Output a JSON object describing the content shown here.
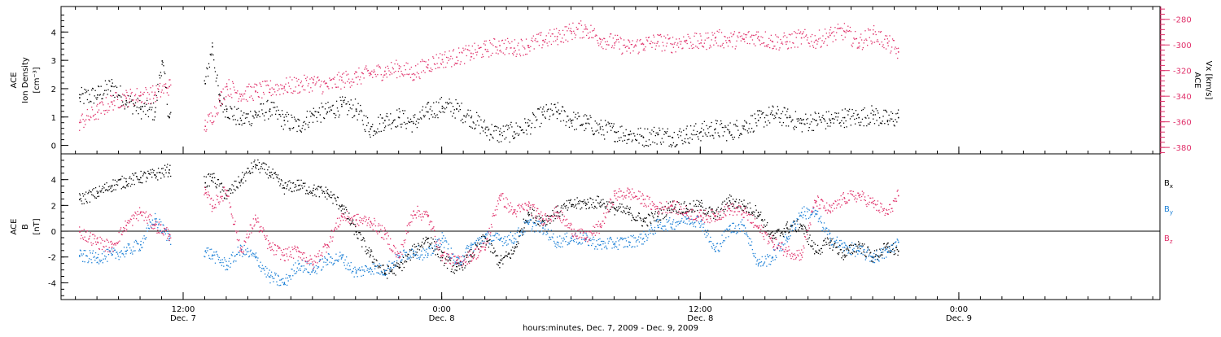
{
  "chart_data": [
    {
      "type": "scatter",
      "panel": "top",
      "ylabel_left": [
        "ACE",
        "Ion Density",
        "[cm⁻³]"
      ],
      "ylabel_right": [
        "ACE",
        "Vx [km/s]"
      ],
      "ylim_left": [
        -0.3,
        4.9
      ],
      "ylim_right": [
        -385,
        -270
      ],
      "yticks_left": [
        "0",
        "1",
        "2",
        "3",
        "4"
      ],
      "yticks_right": [
        "-380",
        "-360",
        "-340",
        "-320",
        "-300",
        "-280"
      ],
      "right_axis_color": "#e0306a",
      "series": [
        {
          "name": "Ion Density",
          "color": "#000000",
          "axis": "left",
          "x": [
            -14.5,
            -12,
            -10,
            -8,
            -6,
            -4,
            -3,
            -2,
            3,
            4,
            5,
            6,
            8,
            10,
            12,
            14,
            16,
            18,
            20,
            22,
            24,
            26,
            28,
            30,
            32,
            34,
            36,
            38,
            40,
            42,
            44,
            46,
            48,
            50,
            52,
            54,
            56,
            58,
            60,
            62,
            64,
            66,
            68,
            70,
            72,
            74,
            76,
            78,
            80,
            82,
            84,
            86,
            88,
            90,
            92,
            94,
            96,
            98,
            99.5
          ],
          "y": [
            1.7,
            1.8,
            2.1,
            1.6,
            1.3,
            1.2,
            3.0,
            1.0,
            2.2,
            3.5,
            1.6,
            1.3,
            0.9,
            1.1,
            1.3,
            0.9,
            0.7,
            1.1,
            1.2,
            1.4,
            1.3,
            0.6,
            0.9,
            1.0,
            0.8,
            1.2,
            1.4,
            1.3,
            1.0,
            0.6,
            0.4,
            0.5,
            0.7,
            1.1,
            1.2,
            0.9,
            0.8,
            0.6,
            0.5,
            0.4,
            0.3,
            0.4,
            0.3,
            0.4,
            0.5,
            0.6,
            0.5,
            0.7,
            0.9,
            1.1,
            1.0,
            0.8,
            0.9,
            0.9,
            1.0,
            1.0,
            1.1,
            0.9,
            1.0
          ]
        },
        {
          "name": "Vx",
          "color": "#e0306a",
          "axis": "right",
          "x": [
            -14.5,
            -12,
            -10,
            -8,
            -6,
            -4,
            -2,
            3,
            4,
            5,
            6,
            8,
            10,
            12,
            14,
            16,
            18,
            20,
            22,
            24,
            26,
            28,
            30,
            32,
            34,
            36,
            38,
            40,
            42,
            44,
            46,
            48,
            50,
            52,
            54,
            56,
            58,
            60,
            62,
            64,
            66,
            68,
            70,
            72,
            74,
            76,
            78,
            80,
            82,
            84,
            86,
            88,
            90,
            92,
            94,
            96,
            98,
            99.5
          ],
          "y": [
            -360,
            -352,
            -344,
            -341,
            -339,
            -338,
            -332,
            -363,
            -355,
            -344,
            -332,
            -338,
            -336,
            -334,
            -332,
            -331,
            -329,
            -332,
            -327,
            -325,
            -322,
            -320,
            -318,
            -322,
            -315,
            -311,
            -309,
            -306,
            -303,
            -300,
            -302,
            -300,
            -296,
            -293,
            -289,
            -287,
            -295,
            -298,
            -302,
            -299,
            -297,
            -299,
            -296,
            -298,
            -294,
            -296,
            -295,
            -293,
            -297,
            -297,
            -294,
            -296,
            -292,
            -289,
            -298,
            -291,
            -298,
            -305
          ]
        }
      ]
    },
    {
      "type": "scatter",
      "panel": "bottom",
      "ylabel_left": [
        "ACE",
        "B",
        "[nT]"
      ],
      "ylim": [
        -5.3,
        6.0
      ],
      "yticks": [
        "-4",
        "-2",
        "0",
        "2",
        "4"
      ],
      "zero_line": true,
      "series": [
        {
          "name": "Bx",
          "color": "#000000",
          "x": [
            -14.5,
            -12,
            -10,
            -8,
            -6,
            -4,
            -2,
            3,
            4,
            6,
            8,
            10,
            12,
            14,
            16,
            18,
            20,
            22,
            24,
            26,
            28,
            30,
            32,
            34,
            36,
            38,
            40,
            42,
            44,
            46,
            48,
            50,
            52,
            54,
            56,
            58,
            60,
            62,
            64,
            66,
            68,
            70,
            72,
            74,
            76,
            78,
            80,
            82,
            84,
            86,
            88,
            90,
            92,
            94,
            96,
            98,
            99.5
          ],
          "y": [
            2.5,
            3.0,
            3.6,
            3.9,
            4.2,
            4.4,
            4.8,
            3.8,
            4.2,
            2.8,
            4.0,
            5.2,
            4.6,
            3.4,
            3.6,
            3.2,
            3.0,
            2.0,
            0.0,
            -1.8,
            -3.2,
            -2.8,
            -1.5,
            -0.5,
            -2.0,
            -3.0,
            -1.8,
            -0.5,
            -2.4,
            -1.5,
            1.5,
            0.8,
            1.5,
            2.1,
            2.2,
            2.3,
            1.8,
            1.5,
            0.8,
            1.2,
            2.0,
            1.8,
            2.0,
            1.2,
            2.4,
            2.0,
            1.5,
            -0.5,
            0.3,
            0.5,
            -1.5,
            -0.8,
            -1.8,
            -1.0,
            -2.0,
            -1.2,
            -1.5
          ]
        },
        {
          "name": "By",
          "color": "#1a7fd6",
          "x": [
            -14.5,
            -12,
            -10,
            -8,
            -6,
            -4,
            -2,
            3,
            4,
            6,
            8,
            10,
            12,
            14,
            16,
            18,
            20,
            22,
            24,
            26,
            28,
            30,
            32,
            34,
            36,
            38,
            40,
            42,
            44,
            46,
            48,
            50,
            52,
            54,
            56,
            58,
            60,
            62,
            64,
            66,
            68,
            70,
            72,
            74,
            76,
            78,
            80,
            82,
            84,
            86,
            88,
            90,
            92,
            94,
            96,
            98,
            99.5
          ],
          "y": [
            -1.9,
            -2.0,
            -1.8,
            -1.5,
            -1.0,
            1.0,
            -0.5,
            -1.5,
            -1.8,
            -2.6,
            -1.4,
            -2.0,
            -3.5,
            -4.0,
            -2.5,
            -3.0,
            -2.2,
            -2.0,
            -3.2,
            -2.8,
            -3.0,
            -2.0,
            -1.5,
            -1.8,
            -0.5,
            -2.5,
            -1.2,
            -0.4,
            -0.6,
            -0.5,
            0.6,
            0.3,
            -0.8,
            -0.5,
            -0.6,
            -1.0,
            -0.9,
            -0.8,
            -0.5,
            0.5,
            0.6,
            1.0,
            0.8,
            -1.5,
            0.2,
            0.5,
            -2.5,
            -2.0,
            -0.5,
            1.5,
            1.4,
            -0.5,
            -1.2,
            -1.5,
            -2.0,
            -1.6,
            -0.8
          ]
        },
        {
          "name": "Bz",
          "color": "#e0306a",
          "x": [
            -14.5,
            -12,
            -10,
            -8,
            -6,
            -4,
            -2,
            3,
            4,
            6,
            8,
            10,
            12,
            14,
            16,
            18,
            20,
            22,
            24,
            26,
            28,
            30,
            32,
            34,
            36,
            38,
            40,
            42,
            44,
            46,
            48,
            50,
            52,
            54,
            56,
            58,
            60,
            62,
            64,
            66,
            68,
            70,
            72,
            74,
            76,
            78,
            80,
            82,
            84,
            86,
            88,
            90,
            92,
            94,
            96,
            98,
            99.5
          ],
          "y": [
            0.0,
            -0.8,
            -1.2,
            0.5,
            1.5,
            0.5,
            -0.2,
            3.0,
            2.0,
            3.2,
            -1.5,
            1.0,
            -1.2,
            -1.8,
            -1.5,
            -2.5,
            -1.0,
            1.2,
            0.9,
            0.8,
            -0.2,
            -2.0,
            1.6,
            1.2,
            -1.8,
            -2.4,
            -1.9,
            -1.2,
            2.8,
            1.5,
            2.0,
            1.0,
            1.5,
            0.2,
            -0.5,
            0.4,
            2.8,
            3.0,
            2.5,
            1.8,
            2.0,
            1.5,
            1.2,
            1.2,
            1.8,
            1.5,
            0.3,
            -0.8,
            -1.5,
            -1.8,
            2.4,
            1.6,
            2.6,
            2.8,
            2.2,
            1.4,
            2.8
          ]
        }
      ],
      "legend": [
        {
          "label": "B",
          "sub": "x",
          "color": "#000000"
        },
        {
          "label": "B",
          "sub": "y",
          "color": "#1a7fd6"
        },
        {
          "label": "B",
          "sub": "z",
          "color": "#e0306a"
        }
      ]
    }
  ],
  "x_axis": {
    "range_hours": [
      -17,
      136
    ],
    "ticks": [
      {
        "hour": 0,
        "time": "12:00",
        "date": "Dec. 7"
      },
      {
        "hour": 36,
        "time": "0:00",
        "date": "Dec. 8"
      },
      {
        "hour": 72,
        "time": "12:00",
        "date": "Dec. 8"
      },
      {
        "hour": 108,
        "time": "0:00",
        "date": "Dec. 9"
      }
    ],
    "label": "hours:minutes, Dec.  7, 2009 - Dec.  9, 2009"
  }
}
